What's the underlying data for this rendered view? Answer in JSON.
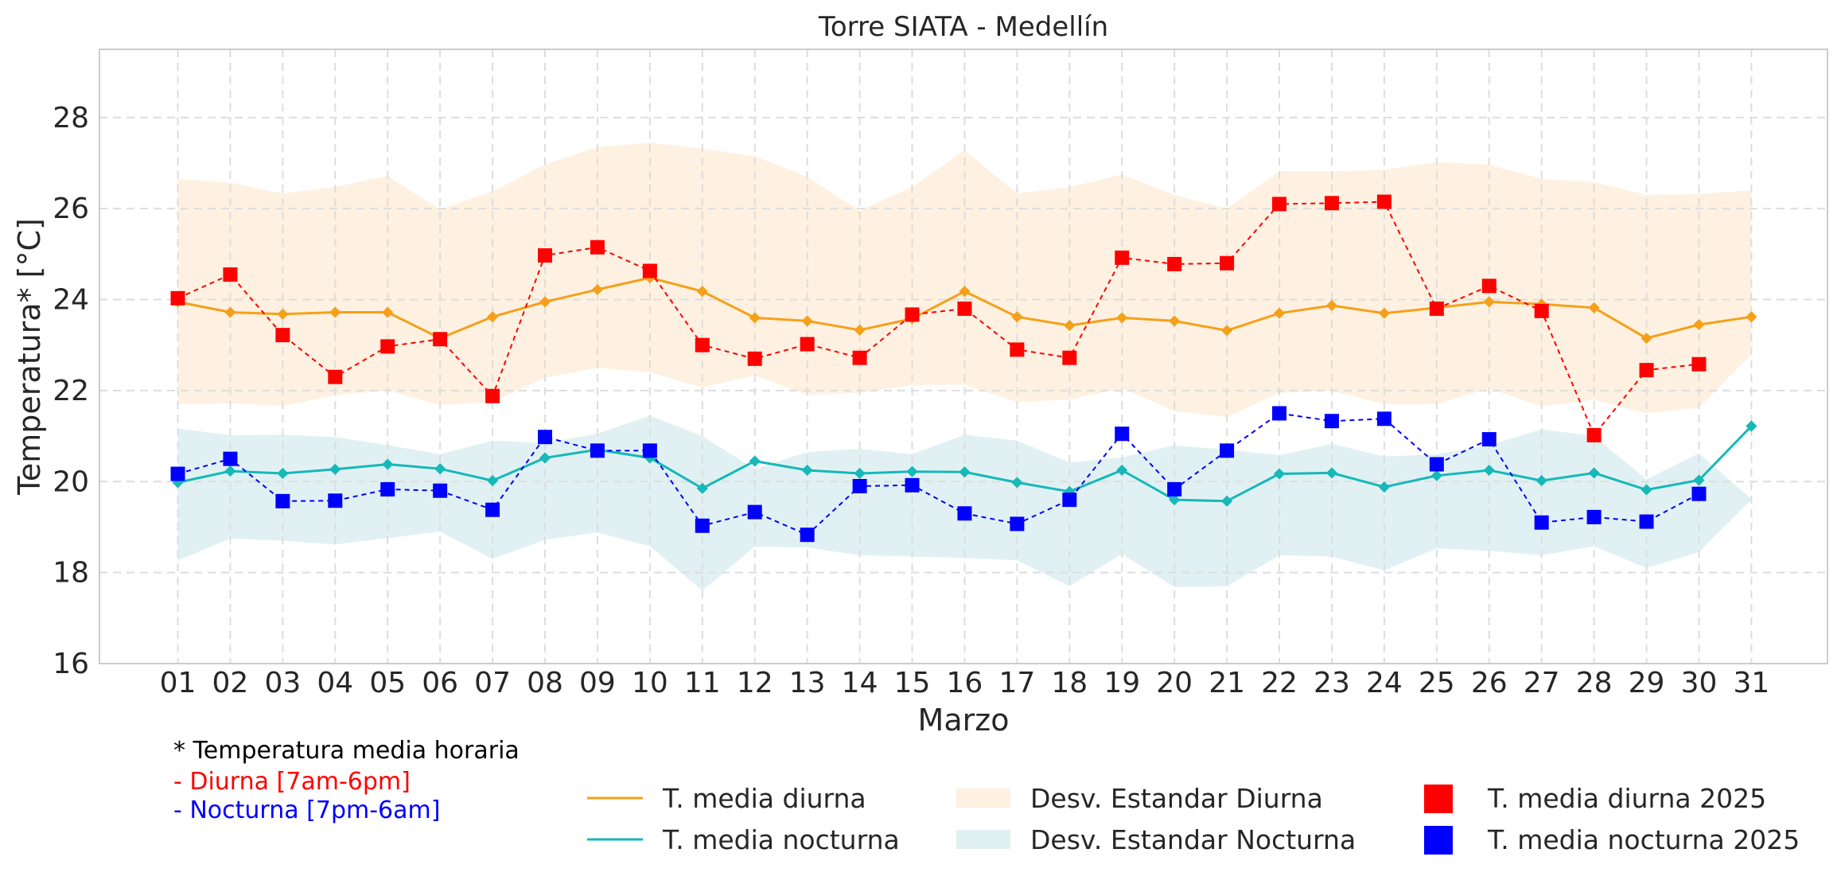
{
  "chart_data": {
    "type": "line",
    "title": "Torre SIATA - Medellín",
    "xlabel": "Marzo",
    "ylabel": "Temperatura* [°C]",
    "ylim": [
      16,
      29.5
    ],
    "yticks": [
      16,
      18,
      20,
      22,
      24,
      26,
      28
    ],
    "grid": true,
    "categories": [
      "01",
      "02",
      "03",
      "04",
      "05",
      "06",
      "07",
      "08",
      "09",
      "10",
      "11",
      "12",
      "13",
      "14",
      "15",
      "16",
      "17",
      "18",
      "19",
      "20",
      "21",
      "22",
      "23",
      "24",
      "25",
      "26",
      "27",
      "28",
      "29",
      "30",
      "31"
    ],
    "series": [
      {
        "name": "T. media diurna",
        "color": "#f5a01a",
        "style": "solid-line",
        "values": [
          23.95,
          23.72,
          23.68,
          23.72,
          23.72,
          23.15,
          23.62,
          23.95,
          24.22,
          24.48,
          24.18,
          23.6,
          23.53,
          23.33,
          23.58,
          24.18,
          23.62,
          23.43,
          23.6,
          23.53,
          23.32,
          23.7,
          23.87,
          23.7,
          23.82,
          23.95,
          23.9,
          23.82,
          23.15,
          23.45,
          23.62
        ]
      },
      {
        "name": "T. media nocturna",
        "color": "#16b8b8",
        "style": "solid-line",
        "values": [
          19.98,
          20.23,
          20.18,
          20.27,
          20.38,
          20.28,
          20.02,
          20.52,
          20.7,
          20.52,
          19.85,
          20.45,
          20.25,
          20.18,
          20.22,
          20.21,
          19.98,
          19.78,
          20.25,
          19.6,
          19.57,
          20.17,
          20.19,
          19.88,
          20.13,
          20.25,
          20.02,
          20.19,
          19.82,
          20.03,
          21.22
        ]
      },
      {
        "name": "Desv. Estandar Diurna",
        "color": "#fde5c8",
        "style": "band",
        "upper": [
          26.65,
          26.57,
          26.33,
          26.48,
          26.72,
          25.98,
          26.38,
          26.97,
          27.35,
          27.45,
          27.32,
          27.15,
          26.7,
          25.95,
          26.48,
          27.28,
          26.33,
          26.47,
          26.75,
          26.3,
          26.0,
          26.82,
          26.82,
          26.85,
          27.02,
          26.97,
          26.65,
          26.58,
          26.3,
          26.32,
          26.4
        ],
        "lower": [
          21.7,
          21.72,
          21.66,
          21.9,
          22.0,
          21.68,
          21.75,
          22.28,
          22.5,
          22.4,
          22.07,
          22.33,
          21.9,
          21.95,
          22.12,
          22.13,
          21.75,
          21.8,
          22.05,
          21.55,
          21.42,
          21.95,
          22.0,
          21.7,
          21.7,
          22.05,
          21.65,
          21.8,
          21.5,
          21.62,
          22.8
        ]
      },
      {
        "name": "Desv. Estandar Nocturna",
        "color": "#c9e6e9",
        "style": "band",
        "upper": [
          21.17,
          21.02,
          21.03,
          20.98,
          20.8,
          20.6,
          20.9,
          20.85,
          21.05,
          21.45,
          21.0,
          20.28,
          20.65,
          20.72,
          20.6,
          21.03,
          20.9,
          20.42,
          20.53,
          20.8,
          20.7,
          20.58,
          20.83,
          20.55,
          20.6,
          20.8,
          21.15,
          21.0,
          20.05,
          20.62,
          19.62
        ],
        "lower": [
          18.26,
          18.75,
          18.7,
          18.62,
          18.76,
          18.9,
          18.3,
          18.72,
          18.88,
          18.58,
          17.6,
          18.57,
          18.55,
          18.38,
          18.35,
          18.32,
          18.27,
          17.7,
          18.41,
          17.68,
          17.7,
          18.38,
          18.35,
          18.05,
          18.53,
          18.48,
          18.38,
          18.58,
          18.1,
          18.45,
          19.6
        ]
      },
      {
        "name": "T. media diurna 2025",
        "color": "#ff0000",
        "style": "dashed-square",
        "values": [
          24.03,
          24.55,
          23.22,
          22.3,
          22.97,
          23.13,
          21.88,
          24.97,
          25.15,
          24.63,
          23.0,
          22.7,
          23.02,
          22.72,
          23.67,
          23.8,
          22.9,
          22.72,
          24.92,
          24.78,
          24.8,
          26.1,
          26.12,
          26.15,
          23.8,
          24.3,
          23.75,
          21.02,
          22.45,
          22.58,
          null
        ]
      },
      {
        "name": "T. media nocturna 2025",
        "color": "#0000ff",
        "style": "dashed-square",
        "values": [
          20.17,
          20.5,
          19.57,
          19.58,
          19.83,
          19.8,
          19.38,
          20.98,
          20.68,
          20.68,
          19.03,
          19.33,
          18.83,
          19.9,
          19.92,
          19.3,
          19.07,
          19.6,
          21.05,
          19.83,
          20.68,
          21.5,
          21.33,
          21.38,
          20.38,
          20.93,
          19.1,
          19.22,
          19.12,
          19.73,
          null
        ]
      }
    ]
  },
  "notes": {
    "line1": "* Temperatura media horaria",
    "line2": "- Diurna [7am-6pm]",
    "line3": "- Nocturna [7pm-6am]",
    "line2_color": "#ff0000",
    "line3_color": "#0000ff"
  }
}
